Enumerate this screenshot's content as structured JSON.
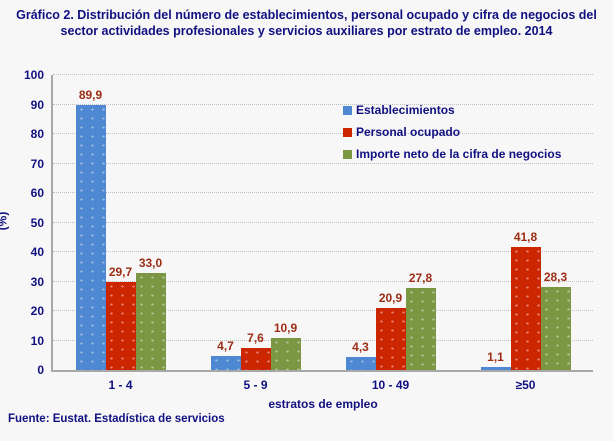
{
  "chart_data": {
    "type": "bar",
    "title": "Gráfico 2. Distribución del número de establecimientos, personal ocupado y cifra de negocios del sector actividades profesionales y servicios auxiliares por estrato de empleo. 2014",
    "categories": [
      "1 - 4",
      "5 - 9",
      "10 - 49",
      "≥50"
    ],
    "series": [
      {
        "name": "Establecimientos",
        "color": "#4E87D2",
        "values": [
          89.9,
          4.7,
          4.3,
          1.1
        ]
      },
      {
        "name": "Personal ocupado",
        "color": "#CC2600",
        "values": [
          29.7,
          7.6,
          20.9,
          41.8
        ]
      },
      {
        "name": "Importe neto de la cifra de negocios",
        "color": "#7B9744",
        "values": [
          33.0,
          10.9,
          27.8,
          28.3
        ]
      }
    ],
    "xlabel": "estratos de empleo",
    "ylabel": "(%)",
    "ylim": [
      0,
      100
    ],
    "ytick_step": 10,
    "grid": true,
    "legend_position": "top-right",
    "decimal_separator": ","
  },
  "footer": {
    "source": "Fuente: Eustat. Estadística de servicios"
  },
  "colors": {
    "text": "#101080",
    "value_labels": "#9C2D15",
    "axis": "#A8A8A8",
    "gridlines": "#C0C0C0",
    "background": "#F7F7F7"
  }
}
